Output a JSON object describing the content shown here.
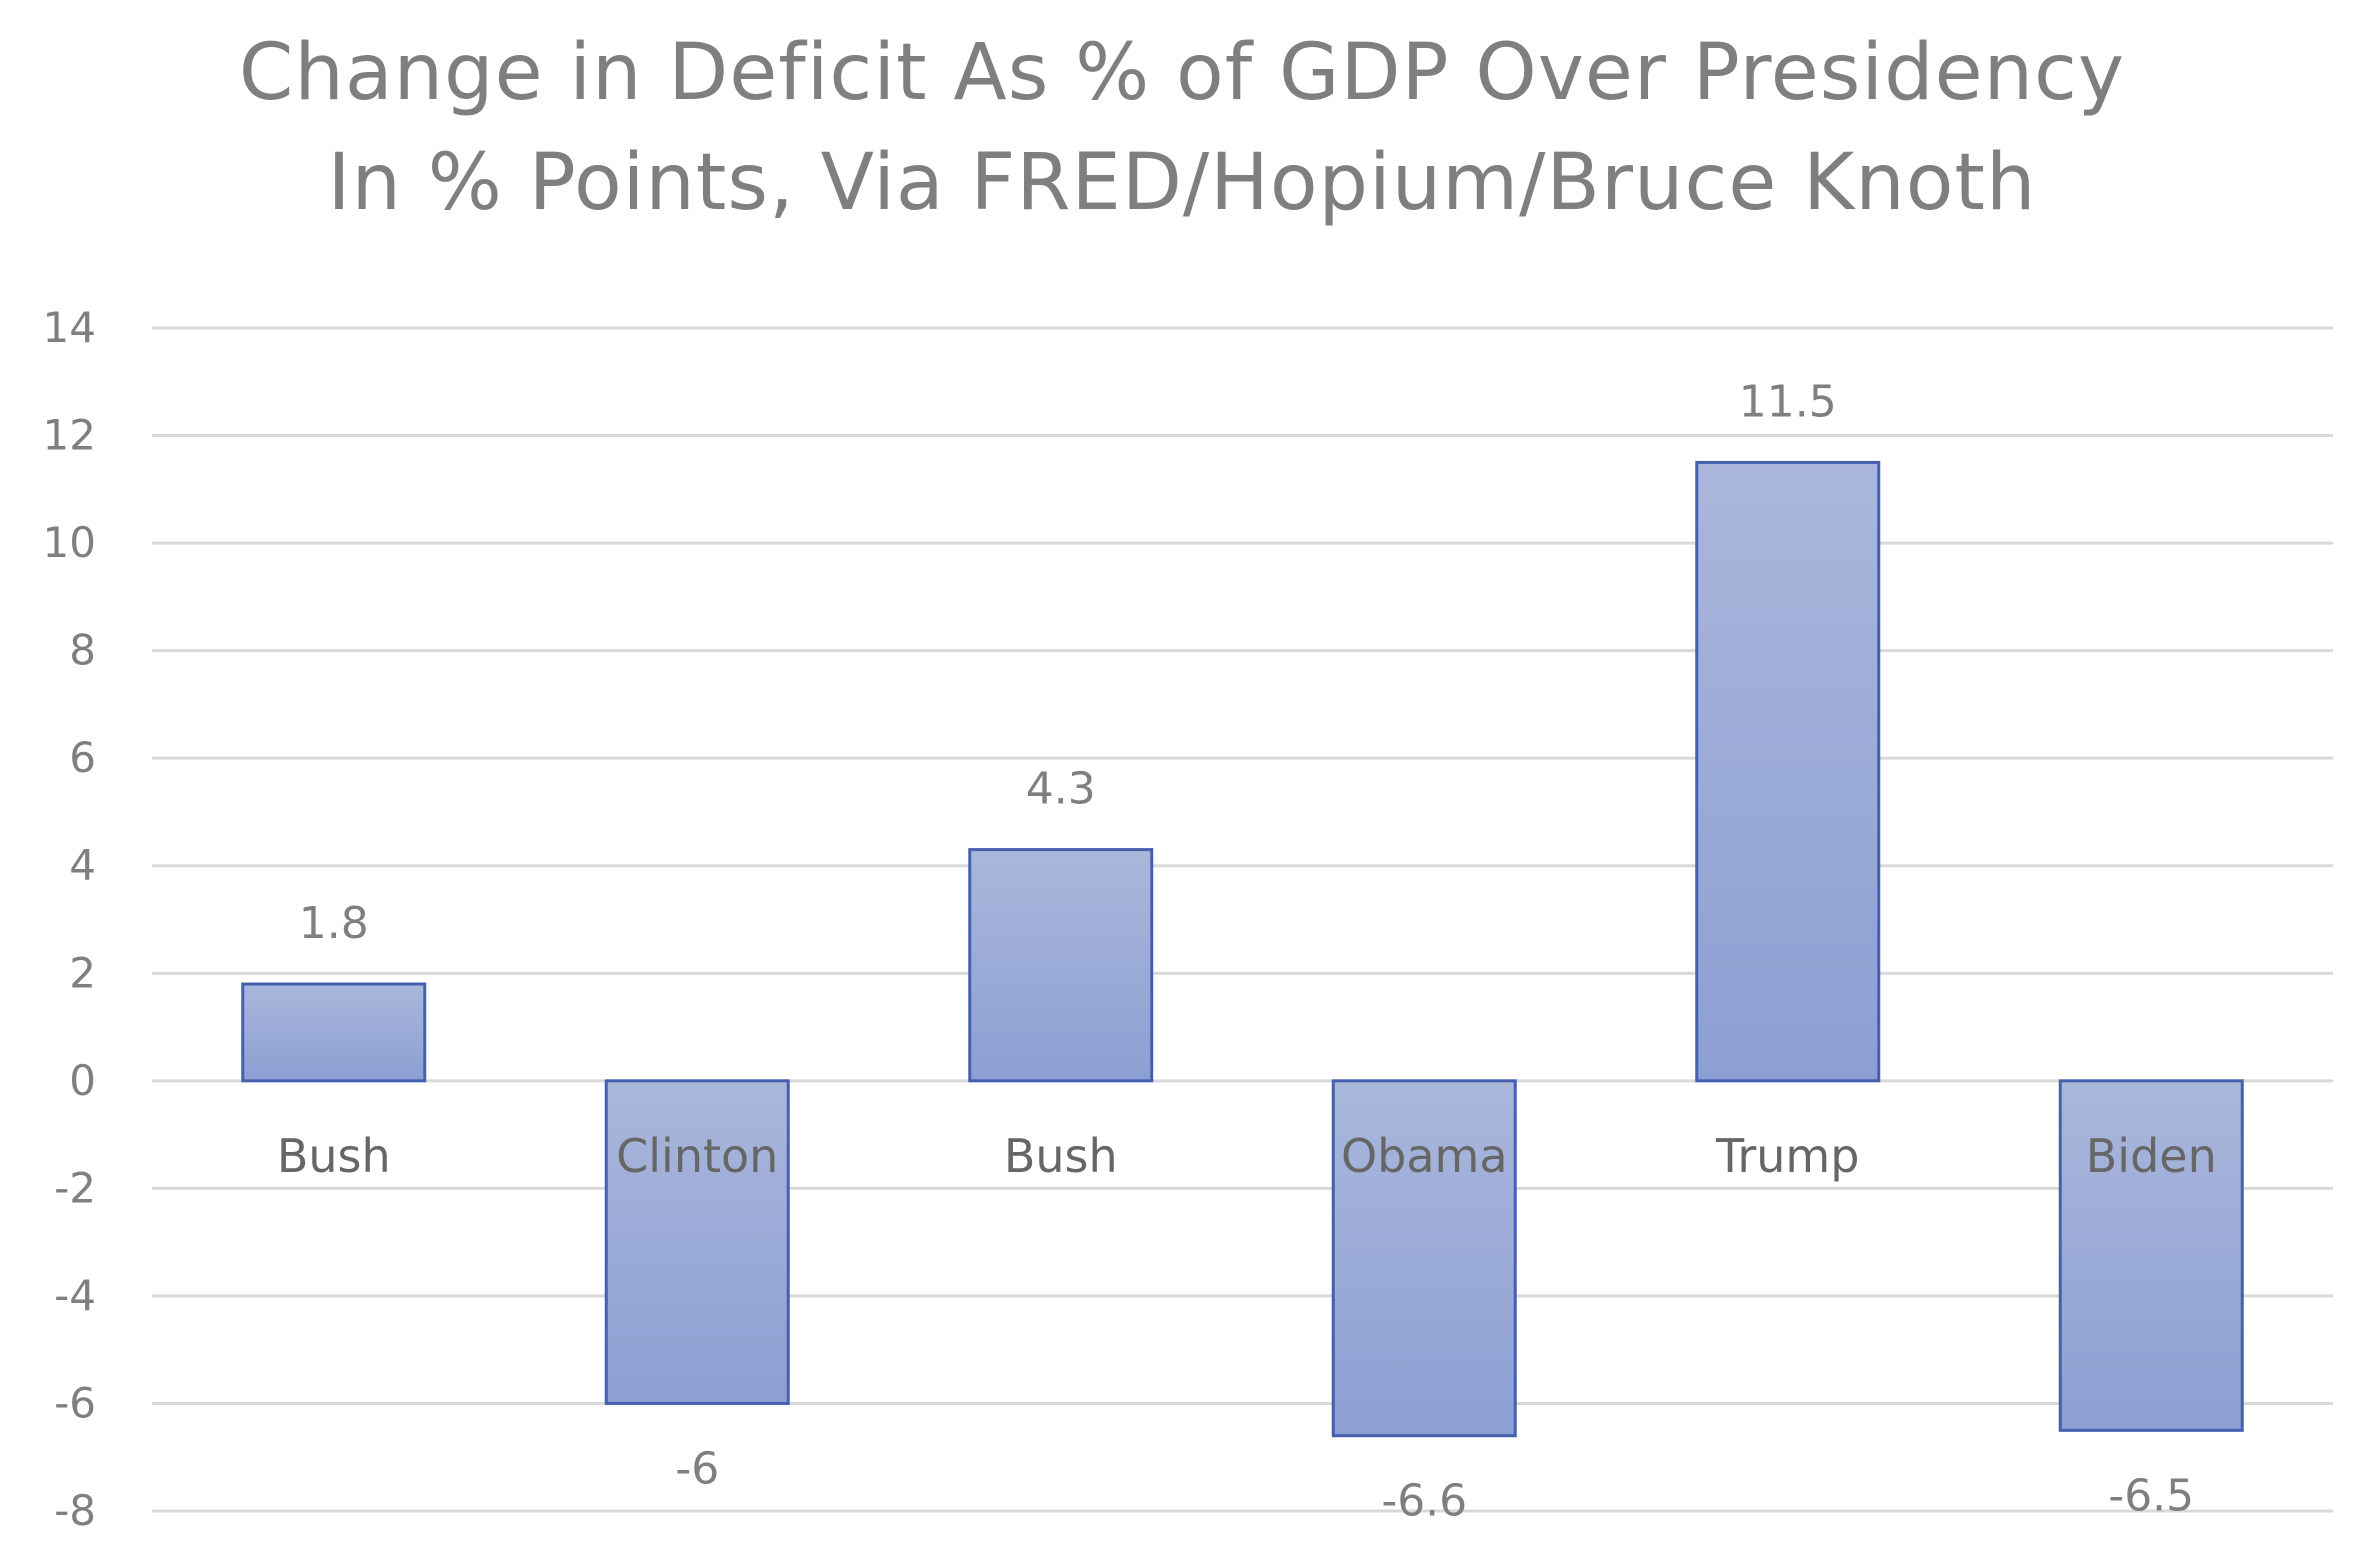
{
  "chart_data": {
    "type": "bar",
    "title": "Change in Deficit As % of GDP Over Presidency",
    "subtitle": "In % Points, Via FRED/Hopium/Bruce Knoth",
    "xlabel": "",
    "ylabel": "",
    "categories": [
      "Bush",
      "Clinton",
      "Bush",
      "Obama",
      "Trump",
      "Biden"
    ],
    "values": [
      1.8,
      -6,
      4.3,
      -6.6,
      11.5,
      -6.5
    ],
    "data_labels": [
      "1.8",
      "-6",
      "4.3",
      "-6.6",
      "11.5",
      "-6.5"
    ],
    "ylim": [
      -8,
      14
    ],
    "yticks": [
      14,
      12,
      10,
      8,
      6,
      4,
      2,
      0,
      -2,
      -4,
      -6,
      -8
    ],
    "grid": true,
    "legend": "none",
    "colors": {
      "bar_top": "#aab7db",
      "bar_bottom": "#8c9fd3",
      "bar_stroke": "#4660b0",
      "grid": "#d9d9d9",
      "text": "#7f7f7f",
      "category_text": "#666666"
    }
  }
}
